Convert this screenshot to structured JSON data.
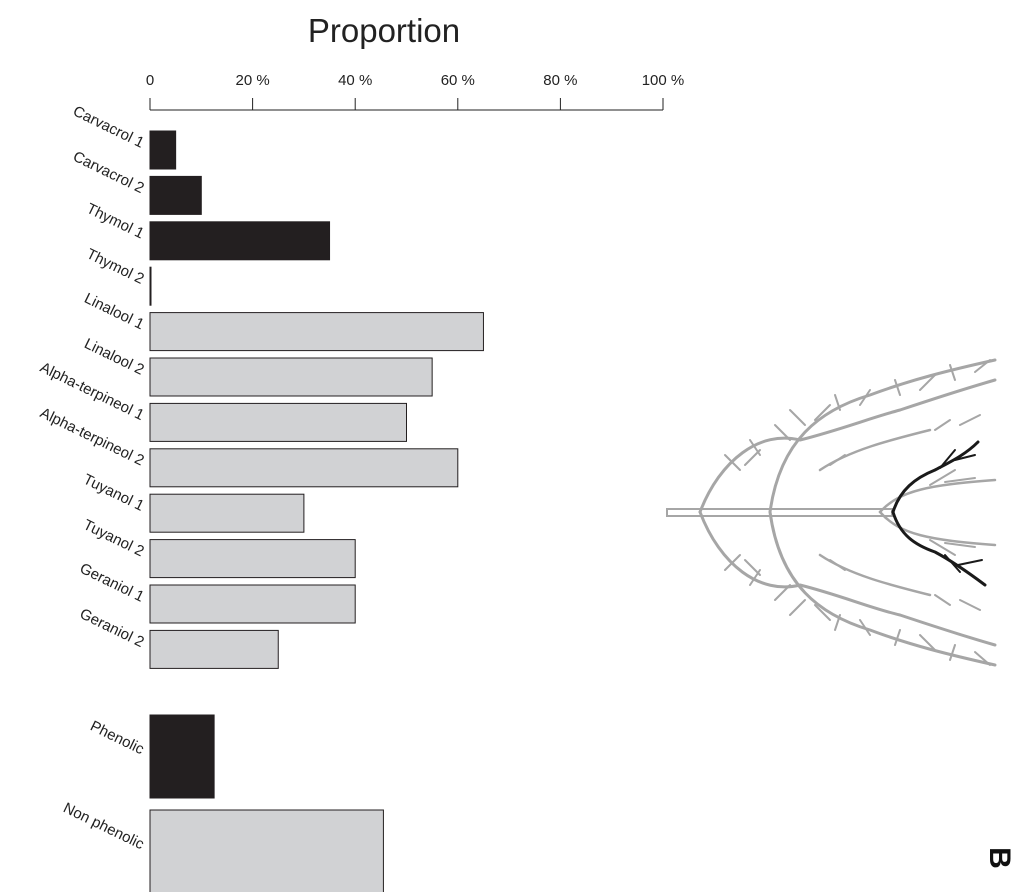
{
  "chart_data": {
    "type": "bar",
    "orientation": "horizontal",
    "title": "Proportion",
    "xlim": [
      0,
      100
    ],
    "xticks": [
      "0",
      "20 %",
      "40 %",
      "60 %",
      "80 %",
      "100 %"
    ],
    "xtick_values": [
      0,
      20,
      40,
      60,
      80,
      100
    ],
    "colors": {
      "phenolic": "#231f20",
      "non_phenolic": "#d1d2d4",
      "tree_gray": "#a6a6a6",
      "tree_dark": "#1a1a1a"
    },
    "groups": [
      {
        "categories": [
          "Carvacrol 1",
          "Carvacrol 2",
          "Thymol 1",
          "Thymol 2",
          "Linalool 1",
          "Linalool 2",
          "Alpha-terpineol 1",
          "Alpha-terpineol 2",
          "Tuyanol 1",
          "Tuyanol 2",
          "Geraniol 1",
          "Geraniol 2"
        ],
        "values": [
          5,
          10,
          35,
          0,
          65,
          55,
          50,
          60,
          30,
          40,
          40,
          25
        ],
        "classes": [
          "phenolic",
          "phenolic",
          "phenolic",
          "phenolic",
          "non_phenolic",
          "non_phenolic",
          "non_phenolic",
          "non_phenolic",
          "non_phenolic",
          "non_phenolic",
          "non_phenolic",
          "non_phenolic"
        ]
      },
      {
        "categories": [
          "Phenolic",
          "Non phenolic"
        ],
        "values": [
          12.5,
          45.5
        ],
        "classes": [
          "phenolic",
          "non_phenolic"
        ]
      }
    ],
    "panel_label": "B"
  }
}
